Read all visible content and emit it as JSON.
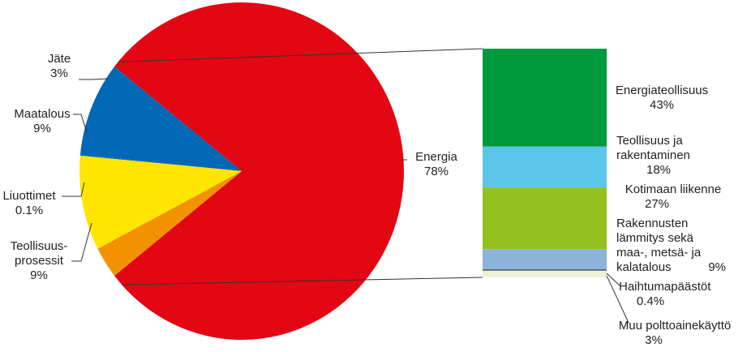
{
  "chart_data": [
    {
      "type": "pie",
      "slices": [
        {
          "label": "Energia",
          "value_label": "78%",
          "value": 78,
          "color": "#e30613"
        },
        {
          "label": "Teollisuus-\nprosessit",
          "value_label": "9%",
          "value": 9,
          "color": "#0068b4"
        },
        {
          "label": "Liuottimet",
          "value_label": "0.1%",
          "value": 0.1,
          "color": "#0068b4"
        },
        {
          "label": "Maatalous",
          "value_label": "9%",
          "value": 9,
          "color": "#ffe600"
        },
        {
          "label": "Jäte",
          "value_label": "3%",
          "value": 3,
          "color": "#f39200"
        }
      ]
    },
    {
      "type": "bar",
      "stacked": true,
      "segments": [
        {
          "label": "Energiateollisuus",
          "value_label": "43%",
          "value": 43,
          "color": "#009a3e"
        },
        {
          "label": "Teollisuus ja\nrakentaminen",
          "value_label": "18%",
          "value": 18,
          "color": "#5bc5ea"
        },
        {
          "label": "Kotimaan liikenne",
          "value_label": "27%",
          "value": 27,
          "color": "#95c11f"
        },
        {
          "label": "Rakennusten\nlämmitys sekä\nmaa-, metsä- ja\nkalatalous",
          "value_label": "9%",
          "value": 9,
          "color": "#8db3dc"
        },
        {
          "label": "Haihtumapäästöt",
          "value_label": "0.4%",
          "value": 0.4,
          "color": "#1d1d1b"
        },
        {
          "label": "Muu polttoainekäyttö",
          "value_label": "3%",
          "value": 3,
          "color": "#eef0d8"
        }
      ]
    }
  ]
}
